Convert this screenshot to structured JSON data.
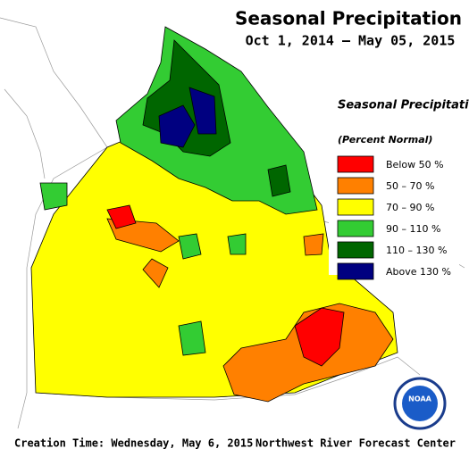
{
  "title": "Seasonal Precipitation",
  "subtitle": "Oct 1, 2014 – May 05, 2015",
  "legend": {
    "title": "Seasonal Precipitation",
    "subtitle": "(Percent Normal)",
    "items": [
      {
        "label": "Below 50 %",
        "color": "#ff0000"
      },
      {
        "label": "50 – 70 %",
        "color": "#ff8000"
      },
      {
        "label": "70 – 90 %",
        "color": "#ffff00"
      },
      {
        "label": "90 – 110 %",
        "color": "#33cc33"
      },
      {
        "label": "110 – 130 %",
        "color": "#006600"
      },
      {
        "label": "Above 130 %",
        "color": "#000080"
      }
    ]
  },
  "footer": {
    "left": "Creation Time: Wednesday, May 6, 2015",
    "right": "Northwest River Forecast Center"
  },
  "logo": "NOAA"
}
